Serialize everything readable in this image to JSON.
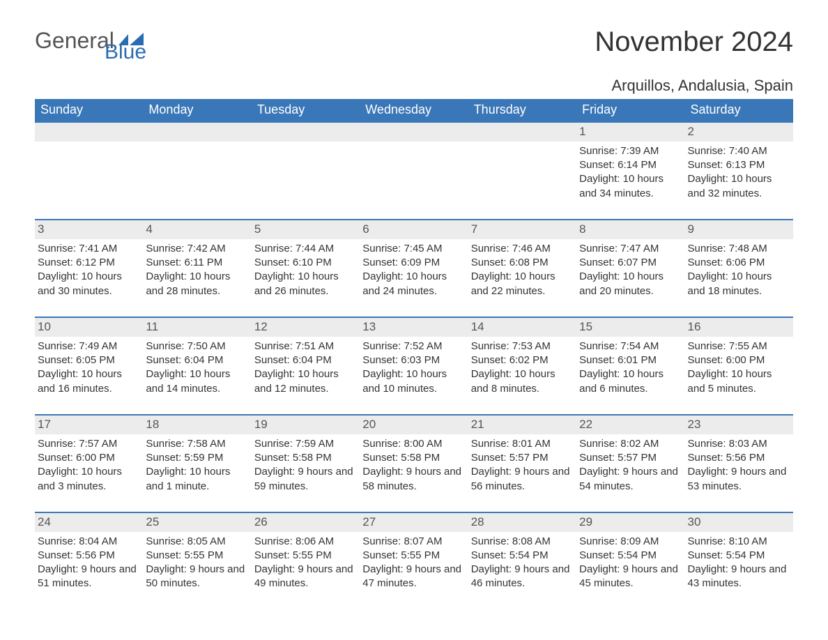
{
  "logo": {
    "text1": "General",
    "text2": "Blue"
  },
  "title": "November 2024",
  "location": "Arquillos, Andalusia, Spain",
  "colors": {
    "header_bg": "#3a77b8",
    "header_text": "#ffffff",
    "row_divider": "#3a77b8",
    "daynum_bg": "#ececec",
    "body_text": "#333333",
    "logo_gray": "#555555",
    "logo_blue": "#2b6cb0",
    "page_bg": "#ffffff"
  },
  "weekdays": [
    "Sunday",
    "Monday",
    "Tuesday",
    "Wednesday",
    "Thursday",
    "Friday",
    "Saturday"
  ],
  "weeks": [
    [
      {
        "blank": true
      },
      {
        "blank": true
      },
      {
        "blank": true
      },
      {
        "blank": true
      },
      {
        "blank": true
      },
      {
        "day": "1",
        "sunrise": "Sunrise: 7:39 AM",
        "sunset": "Sunset: 6:14 PM",
        "daylight": "Daylight: 10 hours and 34 minutes."
      },
      {
        "day": "2",
        "sunrise": "Sunrise: 7:40 AM",
        "sunset": "Sunset: 6:13 PM",
        "daylight": "Daylight: 10 hours and 32 minutes."
      }
    ],
    [
      {
        "day": "3",
        "sunrise": "Sunrise: 7:41 AM",
        "sunset": "Sunset: 6:12 PM",
        "daylight": "Daylight: 10 hours and 30 minutes."
      },
      {
        "day": "4",
        "sunrise": "Sunrise: 7:42 AM",
        "sunset": "Sunset: 6:11 PM",
        "daylight": "Daylight: 10 hours and 28 minutes."
      },
      {
        "day": "5",
        "sunrise": "Sunrise: 7:44 AM",
        "sunset": "Sunset: 6:10 PM",
        "daylight": "Daylight: 10 hours and 26 minutes."
      },
      {
        "day": "6",
        "sunrise": "Sunrise: 7:45 AM",
        "sunset": "Sunset: 6:09 PM",
        "daylight": "Daylight: 10 hours and 24 minutes."
      },
      {
        "day": "7",
        "sunrise": "Sunrise: 7:46 AM",
        "sunset": "Sunset: 6:08 PM",
        "daylight": "Daylight: 10 hours and 22 minutes."
      },
      {
        "day": "8",
        "sunrise": "Sunrise: 7:47 AM",
        "sunset": "Sunset: 6:07 PM",
        "daylight": "Daylight: 10 hours and 20 minutes."
      },
      {
        "day": "9",
        "sunrise": "Sunrise: 7:48 AM",
        "sunset": "Sunset: 6:06 PM",
        "daylight": "Daylight: 10 hours and 18 minutes."
      }
    ],
    [
      {
        "day": "10",
        "sunrise": "Sunrise: 7:49 AM",
        "sunset": "Sunset: 6:05 PM",
        "daylight": "Daylight: 10 hours and 16 minutes."
      },
      {
        "day": "11",
        "sunrise": "Sunrise: 7:50 AM",
        "sunset": "Sunset: 6:04 PM",
        "daylight": "Daylight: 10 hours and 14 minutes."
      },
      {
        "day": "12",
        "sunrise": "Sunrise: 7:51 AM",
        "sunset": "Sunset: 6:04 PM",
        "daylight": "Daylight: 10 hours and 12 minutes."
      },
      {
        "day": "13",
        "sunrise": "Sunrise: 7:52 AM",
        "sunset": "Sunset: 6:03 PM",
        "daylight": "Daylight: 10 hours and 10 minutes."
      },
      {
        "day": "14",
        "sunrise": "Sunrise: 7:53 AM",
        "sunset": "Sunset: 6:02 PM",
        "daylight": "Daylight: 10 hours and 8 minutes."
      },
      {
        "day": "15",
        "sunrise": "Sunrise: 7:54 AM",
        "sunset": "Sunset: 6:01 PM",
        "daylight": "Daylight: 10 hours and 6 minutes."
      },
      {
        "day": "16",
        "sunrise": "Sunrise: 7:55 AM",
        "sunset": "Sunset: 6:00 PM",
        "daylight": "Daylight: 10 hours and 5 minutes."
      }
    ],
    [
      {
        "day": "17",
        "sunrise": "Sunrise: 7:57 AM",
        "sunset": "Sunset: 6:00 PM",
        "daylight": "Daylight: 10 hours and 3 minutes."
      },
      {
        "day": "18",
        "sunrise": "Sunrise: 7:58 AM",
        "sunset": "Sunset: 5:59 PM",
        "daylight": "Daylight: 10 hours and 1 minute."
      },
      {
        "day": "19",
        "sunrise": "Sunrise: 7:59 AM",
        "sunset": "Sunset: 5:58 PM",
        "daylight": "Daylight: 9 hours and 59 minutes."
      },
      {
        "day": "20",
        "sunrise": "Sunrise: 8:00 AM",
        "sunset": "Sunset: 5:58 PM",
        "daylight": "Daylight: 9 hours and 58 minutes."
      },
      {
        "day": "21",
        "sunrise": "Sunrise: 8:01 AM",
        "sunset": "Sunset: 5:57 PM",
        "daylight": "Daylight: 9 hours and 56 minutes."
      },
      {
        "day": "22",
        "sunrise": "Sunrise: 8:02 AM",
        "sunset": "Sunset: 5:57 PM",
        "daylight": "Daylight: 9 hours and 54 minutes."
      },
      {
        "day": "23",
        "sunrise": "Sunrise: 8:03 AM",
        "sunset": "Sunset: 5:56 PM",
        "daylight": "Daylight: 9 hours and 53 minutes."
      }
    ],
    [
      {
        "day": "24",
        "sunrise": "Sunrise: 8:04 AM",
        "sunset": "Sunset: 5:56 PM",
        "daylight": "Daylight: 9 hours and 51 minutes."
      },
      {
        "day": "25",
        "sunrise": "Sunrise: 8:05 AM",
        "sunset": "Sunset: 5:55 PM",
        "daylight": "Daylight: 9 hours and 50 minutes."
      },
      {
        "day": "26",
        "sunrise": "Sunrise: 8:06 AM",
        "sunset": "Sunset: 5:55 PM",
        "daylight": "Daylight: 9 hours and 49 minutes."
      },
      {
        "day": "27",
        "sunrise": "Sunrise: 8:07 AM",
        "sunset": "Sunset: 5:55 PM",
        "daylight": "Daylight: 9 hours and 47 minutes."
      },
      {
        "day": "28",
        "sunrise": "Sunrise: 8:08 AM",
        "sunset": "Sunset: 5:54 PM",
        "daylight": "Daylight: 9 hours and 46 minutes."
      },
      {
        "day": "29",
        "sunrise": "Sunrise: 8:09 AM",
        "sunset": "Sunset: 5:54 PM",
        "daylight": "Daylight: 9 hours and 45 minutes."
      },
      {
        "day": "30",
        "sunrise": "Sunrise: 8:10 AM",
        "sunset": "Sunset: 5:54 PM",
        "daylight": "Daylight: 9 hours and 43 minutes."
      }
    ]
  ]
}
